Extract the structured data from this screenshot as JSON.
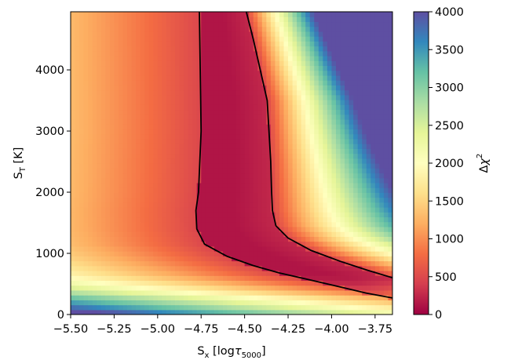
{
  "chart_data": {
    "type": "heatmap",
    "title": "",
    "xlabel": {
      "main": "S",
      "sub": "x",
      "rest": " [log",
      "tau": "τ",
      "tau_sub": "5000",
      "close": "]"
    },
    "ylabel": {
      "main": "S",
      "sub": "T",
      "rest": " [K]"
    },
    "colorbar_label": {
      "delta": "Δ",
      "chi": "χ",
      "sup": "2"
    },
    "colormap": "Spectral_r",
    "colormap_stops": [
      "#9e0142",
      "#d53e4f",
      "#f46d43",
      "#fdae61",
      "#fee08b",
      "#ffffbf",
      "#e6f598",
      "#abdda4",
      "#66c2a5",
      "#3288bd",
      "#5e4fa2"
    ],
    "xlim": [
      -5.5,
      -3.65
    ],
    "ylim": [
      0,
      4950
    ],
    "zlim": [
      0,
      4000
    ],
    "x_ticks": [
      -5.5,
      -5.25,
      -5.0,
      -4.75,
      -4.5,
      -4.25,
      -4.0,
      -3.75
    ],
    "x_tick_labels": [
      "−5.50",
      "−5.25",
      "−5.00",
      "−4.75",
      "−4.50",
      "−4.25",
      "−4.00",
      "−3.75"
    ],
    "y_ticks": [
      0,
      1000,
      2000,
      3000,
      4000
    ],
    "y_tick_labels": [
      "0",
      "1000",
      "2000",
      "3000",
      "4000"
    ],
    "colorbar_ticks": [
      0,
      500,
      1000,
      1500,
      2000,
      2500,
      3000,
      3500,
      4000
    ],
    "colorbar_tick_labels": [
      "0",
      "500",
      "1000",
      "1500",
      "2000",
      "2500",
      "3000",
      "3500",
      "4000"
    ],
    "contour_left_boundary": [
      [
        -4.76,
        4950
      ],
      [
        -4.755,
        4000
      ],
      [
        -4.75,
        3000
      ],
      [
        -4.765,
        2000
      ],
      [
        -4.78,
        1700
      ],
      [
        -4.775,
        1400
      ],
      [
        -4.73,
        1150
      ],
      [
        -4.6,
        950
      ],
      [
        -4.45,
        800
      ],
      [
        -4.3,
        680
      ],
      [
        -4.1,
        550
      ],
      [
        -3.95,
        450
      ],
      [
        -3.8,
        350
      ],
      [
        -3.65,
        270
      ]
    ],
    "contour_right_boundary": [
      [
        -4.49,
        4950
      ],
      [
        -4.45,
        4500
      ],
      [
        -4.37,
        3500
      ],
      [
        -4.35,
        2500
      ],
      [
        -4.345,
        2000
      ],
      [
        -4.34,
        1700
      ],
      [
        -4.32,
        1450
      ],
      [
        -4.25,
        1250
      ],
      [
        -4.12,
        1050
      ],
      [
        -3.95,
        870
      ],
      [
        -3.8,
        730
      ],
      [
        -3.65,
        600
      ]
    ],
    "grid": false
  }
}
